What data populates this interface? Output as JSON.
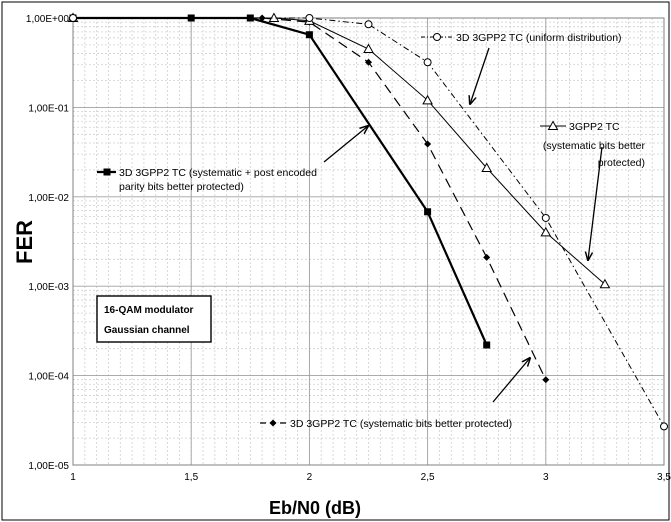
{
  "chart_data": {
    "type": "line",
    "xlabel": "Eb/N0 (dB)",
    "ylabel": "FER",
    "x_ticks": [
      "1",
      "1,5",
      "2",
      "2,5",
      "3",
      "3,5"
    ],
    "y_ticks": [
      "1,00E+00",
      "1,00E-01",
      "1,00E-02",
      "1,00E-03",
      "1,00E-04",
      "1,00E-05"
    ],
    "xlim": [
      1,
      3.5
    ],
    "ylim": [
      1e-05,
      1
    ],
    "y_scale": "log",
    "grid": true,
    "series": [
      {
        "name": "3D 3GPP2 TC (systematic + post  encoded parity bits better protected)",
        "label_lines": [
          "3D 3GPP2 TC (systematic + post  encoded",
          "parity bits better protected)"
        ],
        "marker": "square-filled",
        "line_style": "solid-thick",
        "x": [
          1,
          1.5,
          1.75,
          2,
          2.5,
          2.75
        ],
        "y": [
          1,
          1,
          1,
          0.65,
          0.0068,
          0.00022
        ]
      },
      {
        "name": "3D 3GPP2 TC (systematic bits better protected)",
        "label_lines": [
          "3D 3GPP2 TC (systematic bits better protected)"
        ],
        "marker": "diamond-filled",
        "line_style": "long-dash",
        "x": [
          1,
          1.5,
          1.75,
          1.8,
          2,
          2.25,
          2.5,
          2.75,
          3
        ],
        "y": [
          1,
          1,
          1,
          1,
          0.9,
          0.32,
          0.039,
          0.0021,
          9e-05
        ]
      },
      {
        "name": "3GPP2 TC (systematic bits better protected)",
        "label_lines": [
          "3GPP2 TC",
          "(systematic bits better",
          "protected)"
        ],
        "marker": "triangle-open",
        "line_style": "solid-thin",
        "x": [
          1,
          1.85,
          2,
          2.25,
          2.5,
          2.75,
          3,
          3.25
        ],
        "y": [
          1,
          1,
          0.93,
          0.45,
          0.12,
          0.021,
          0.004,
          0.00105
        ]
      },
      {
        "name": "3D 3GPP2 TC (uniform distribution)",
        "label_lines": [
          "3D 3GPP2 TC (uniform distribution)"
        ],
        "marker": "circle-open",
        "line_style": "dash-dot",
        "x": [
          1,
          2,
          2.25,
          2.5,
          3,
          3.5
        ],
        "y": [
          1,
          1,
          0.85,
          0.32,
          0.0058,
          2.7e-05
        ]
      }
    ],
    "annotation": {
      "lines": [
        "16-QAM modulator",
        "Gaussian channel"
      ]
    }
  }
}
